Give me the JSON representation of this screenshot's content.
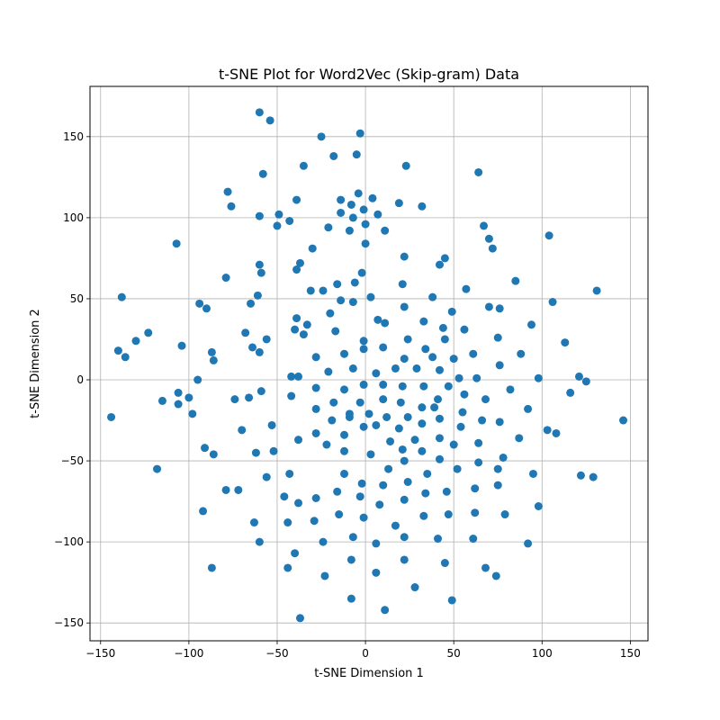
{
  "chart_data": {
    "type": "scatter",
    "title": "t-SNE Plot for Word2Vec (Skip-gram) Data",
    "xlabel": "t-SNE Dimension 1",
    "ylabel": "t-SNE Dimension 2",
    "xlim": [
      -156,
      160
    ],
    "ylim": [
      -161,
      181
    ],
    "xticks": [
      -150,
      -100,
      -50,
      0,
      50,
      100,
      150
    ],
    "yticks": [
      -150,
      -100,
      -50,
      0,
      50,
      100,
      150
    ],
    "xtick_labels": [
      "−150",
      "−100",
      "−50",
      "0",
      "50",
      "100",
      "150"
    ],
    "ytick_labels": [
      "−150",
      "−100",
      "−50",
      "0",
      "50",
      "100",
      "150"
    ],
    "grid": true,
    "marker_color": "#1f77b4",
    "points": [
      [
        -60,
        165
      ],
      [
        -54,
        160
      ],
      [
        -25,
        150
      ],
      [
        -3,
        152
      ],
      [
        -35,
        132
      ],
      [
        -18,
        138
      ],
      [
        -5,
        139
      ],
      [
        23,
        132
      ],
      [
        64,
        128
      ],
      [
        -78,
        116
      ],
      [
        -76,
        107
      ],
      [
        -60,
        101
      ],
      [
        -58,
        127
      ],
      [
        -49,
        102
      ],
      [
        -50,
        95
      ],
      [
        -43,
        98
      ],
      [
        -39,
        111
      ],
      [
        -21,
        94
      ],
      [
        -14,
        111
      ],
      [
        -14,
        103
      ],
      [
        -8,
        108
      ],
      [
        -7,
        100
      ],
      [
        -9,
        92
      ],
      [
        -4,
        115
      ],
      [
        -1,
        105
      ],
      [
        0,
        96
      ],
      [
        4,
        112
      ],
      [
        7,
        102
      ],
      [
        11,
        92
      ],
      [
        19,
        109
      ],
      [
        32,
        107
      ],
      [
        -107,
        84
      ],
      [
        -79,
        63
      ],
      [
        -60,
        71
      ],
      [
        -59,
        66
      ],
      [
        -37,
        72
      ],
      [
        -39,
        68
      ],
      [
        -30,
        81
      ],
      [
        0,
        84
      ],
      [
        22,
        76
      ],
      [
        42,
        71
      ],
      [
        45,
        75
      ],
      [
        67,
        95
      ],
      [
        70,
        87
      ],
      [
        72,
        81
      ],
      [
        104,
        89
      ],
      [
        -138,
        51
      ],
      [
        -94,
        47
      ],
      [
        -90,
        44
      ],
      [
        -65,
        47
      ],
      [
        -61,
        52
      ],
      [
        -31,
        55
      ],
      [
        -24,
        55
      ],
      [
        -20,
        41
      ],
      [
        -16,
        59
      ],
      [
        -14,
        49
      ],
      [
        -6,
        60
      ],
      [
        -7,
        48
      ],
      [
        -2,
        66
      ],
      [
        3,
        51
      ],
      [
        7,
        37
      ],
      [
        11,
        35
      ],
      [
        21,
        59
      ],
      [
        22,
        45
      ],
      [
        33,
        36
      ],
      [
        38,
        51
      ],
      [
        44,
        32
      ],
      [
        49,
        42
      ],
      [
        57,
        56
      ],
      [
        70,
        45
      ],
      [
        76,
        44
      ],
      [
        85,
        61
      ],
      [
        106,
        48
      ],
      [
        131,
        55
      ],
      [
        -140,
        18
      ],
      [
        -136,
        14
      ],
      [
        -130,
        24
      ],
      [
        -123,
        29
      ],
      [
        -104,
        21
      ],
      [
        -87,
        17
      ],
      [
        -86,
        12
      ],
      [
        -68,
        29
      ],
      [
        -64,
        20
      ],
      [
        -60,
        17
      ],
      [
        -56,
        25
      ],
      [
        -40,
        31
      ],
      [
        -39,
        38
      ],
      [
        -33,
        34
      ],
      [
        -35,
        28
      ],
      [
        -28,
        14
      ],
      [
        -17,
        30
      ],
      [
        -12,
        16
      ],
      [
        -7,
        7
      ],
      [
        -1,
        24
      ],
      [
        -1,
        19
      ],
      [
        6,
        4
      ],
      [
        10,
        20
      ],
      [
        17,
        7
      ],
      [
        22,
        13
      ],
      [
        24,
        25
      ],
      [
        29,
        7
      ],
      [
        34,
        19
      ],
      [
        38,
        14
      ],
      [
        42,
        6
      ],
      [
        45,
        25
      ],
      [
        50,
        13
      ],
      [
        53,
        1
      ],
      [
        56,
        31
      ],
      [
        61,
        16
      ],
      [
        63,
        1
      ],
      [
        75,
        26
      ],
      [
        76,
        9
      ],
      [
        88,
        16
      ],
      [
        94,
        34
      ],
      [
        98,
        1
      ],
      [
        113,
        23
      ],
      [
        121,
        2
      ],
      [
        125,
        -1
      ],
      [
        -106,
        -8
      ],
      [
        -106,
        -15
      ],
      [
        -100,
        -11
      ],
      [
        -98,
        -21
      ],
      [
        -95,
        0
      ],
      [
        -115,
        -13
      ],
      [
        -144,
        -23
      ],
      [
        -74,
        -12
      ],
      [
        -66,
        -11
      ],
      [
        -59,
        -7
      ],
      [
        -42,
        -10
      ],
      [
        -42,
        2
      ],
      [
        -38,
        2
      ],
      [
        -21,
        5
      ],
      [
        -18,
        -14
      ],
      [
        -12,
        -6
      ],
      [
        -9,
        -23
      ],
      [
        -3,
        -14
      ],
      [
        -1,
        -3
      ],
      [
        2,
        -21
      ],
      [
        6,
        -28
      ],
      [
        10,
        -12
      ],
      [
        10,
        -3
      ],
      [
        12,
        -23
      ],
      [
        20,
        -14
      ],
      [
        21,
        -4
      ],
      [
        24,
        -23
      ],
      [
        32,
        -17
      ],
      [
        33,
        -4
      ],
      [
        41,
        -12
      ],
      [
        42,
        -24
      ],
      [
        47,
        -4
      ],
      [
        54,
        -29
      ],
      [
        55,
        -20
      ],
      [
        56,
        -9
      ],
      [
        66,
        -25
      ],
      [
        68,
        -12
      ],
      [
        76,
        -26
      ],
      [
        82,
        -6
      ],
      [
        92,
        -18
      ],
      [
        116,
        -8
      ],
      [
        -118,
        -55
      ],
      [
        -91,
        -42
      ],
      [
        -86,
        -46
      ],
      [
        -70,
        -31
      ],
      [
        -53,
        -28
      ],
      [
        -52,
        -44
      ],
      [
        -62,
        -45
      ],
      [
        -56,
        -60
      ],
      [
        -38,
        -37
      ],
      [
        -28,
        -33
      ],
      [
        -28,
        -5
      ],
      [
        -28,
        -18
      ],
      [
        -22,
        -40
      ],
      [
        -19,
        -25
      ],
      [
        -12,
        -58
      ],
      [
        -12,
        -44
      ],
      [
        -12,
        -34
      ],
      [
        -9,
        -21
      ],
      [
        -1,
        -29
      ],
      [
        -2,
        -64
      ],
      [
        3,
        -46
      ],
      [
        10,
        -65
      ],
      [
        13,
        -55
      ],
      [
        14,
        -38
      ],
      [
        19,
        -30
      ],
      [
        21,
        -43
      ],
      [
        22,
        -50
      ],
      [
        28,
        -37
      ],
      [
        32,
        -27
      ],
      [
        32,
        -44
      ],
      [
        35,
        -58
      ],
      [
        39,
        -17
      ],
      [
        42,
        -36
      ],
      [
        42,
        -49
      ],
      [
        46,
        -69
      ],
      [
        50,
        -40
      ],
      [
        52,
        -55
      ],
      [
        62,
        -67
      ],
      [
        64,
        -51
      ],
      [
        64,
        -39
      ],
      [
        75,
        -55
      ],
      [
        78,
        -48
      ],
      [
        87,
        -36
      ],
      [
        95,
        -58
      ],
      [
        103,
        -31
      ],
      [
        108,
        -33
      ],
      [
        122,
        -59
      ],
      [
        129,
        -60
      ],
      [
        146,
        -25
      ],
      [
        -92,
        -81
      ],
      [
        -79,
        -68
      ],
      [
        -72,
        -68
      ],
      [
        -63,
        -88
      ],
      [
        -46,
        -72
      ],
      [
        -43,
        -58
      ],
      [
        -44,
        -88
      ],
      [
        -38,
        -76
      ],
      [
        -28,
        -73
      ],
      [
        -29,
        -87
      ],
      [
        -16,
        -69
      ],
      [
        -15,
        -83
      ],
      [
        -7,
        -97
      ],
      [
        -3,
        -72
      ],
      [
        -1,
        -85
      ],
      [
        8,
        -77
      ],
      [
        17,
        -90
      ],
      [
        22,
        -74
      ],
      [
        24,
        -63
      ],
      [
        33,
        -84
      ],
      [
        34,
        -70
      ],
      [
        41,
        -98
      ],
      [
        47,
        -83
      ],
      [
        61,
        -98
      ],
      [
        62,
        -82
      ],
      [
        75,
        -65
      ],
      [
        79,
        -83
      ],
      [
        92,
        -101
      ],
      [
        98,
        -78
      ],
      [
        -60,
        -100
      ],
      [
        -40,
        -107
      ],
      [
        -44,
        -116
      ],
      [
        -24,
        -100
      ],
      [
        -8,
        -111
      ],
      [
        -8,
        -135
      ],
      [
        -23,
        -121
      ],
      [
        6,
        -101
      ],
      [
        6,
        -119
      ],
      [
        22,
        -111
      ],
      [
        22,
        -97
      ],
      [
        11,
        -142
      ],
      [
        28,
        -128
      ],
      [
        45,
        -113
      ],
      [
        49,
        -136
      ],
      [
        68,
        -116
      ],
      [
        74,
        -121
      ],
      [
        -37,
        -147
      ],
      [
        -87,
        -116
      ]
    ]
  }
}
